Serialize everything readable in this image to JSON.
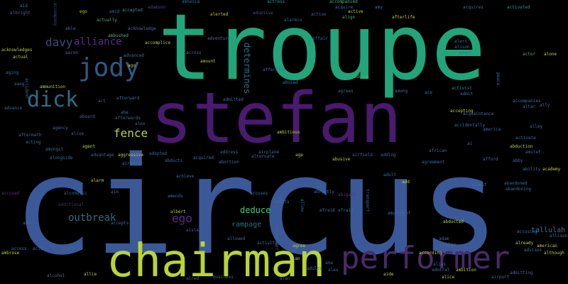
{
  "cloud": {
    "background": "#000000",
    "words": [
      {
        "text": "circus",
        "color": "#3b5998"
      },
      {
        "text": "troupe",
        "color": "#22a57a"
      },
      {
        "text": "stefan",
        "color": "#4a1a6e"
      },
      {
        "text": "chairman",
        "color": "#b8d435"
      },
      {
        "text": "performer",
        "color": "#4a2a6a"
      },
      {
        "text": "jody",
        "color": "#2e5a82"
      },
      {
        "text": "dick",
        "color": "#2a6e84"
      },
      {
        "text": "fence",
        "color": "#b8d435"
      },
      {
        "text": "davy",
        "color": "#3a4a7a"
      },
      {
        "text": "alliance",
        "color": "#5b2a8a"
      },
      {
        "text": "ego",
        "color": "#5b2a8a"
      },
      {
        "text": "outbreak",
        "color": "#2a6e84"
      },
      {
        "text": "deduce",
        "color": "#4fc27a"
      },
      {
        "text": "rampage",
        "color": "#2a6e84"
      },
      {
        "text": "tallulah",
        "color": "#3a6ea0"
      },
      {
        "text": "determines",
        "color": "#2a6e84"
      },
      {
        "text": "aid",
        "color": "#3a6e9a"
      },
      {
        "text": "albright",
        "color": "#5a5a9a"
      },
      {
        "text": "accompany",
        "color": "#3a4a7a"
      },
      {
        "text": "ego",
        "color": "#c0c020"
      },
      {
        "text": "amid",
        "color": "#3a6e9a"
      },
      {
        "text": "accepted",
        "color": "#4a8aa0"
      },
      {
        "text": "adamson",
        "color": "#5a3a9a"
      },
      {
        "text": "amnesia",
        "color": "#3a6e9a"
      },
      {
        "text": "actress",
        "color": "#3a8a8a"
      },
      {
        "text": "accompanied",
        "color": "#4fb07a"
      },
      {
        "text": "amy",
        "color": "#3a6e9a"
      },
      {
        "text": "acquires",
        "color": "#3a6e9a"
      },
      {
        "text": "activated",
        "color": "#3a8aa0"
      },
      {
        "text": "actually",
        "color": "#4fb07a"
      },
      {
        "text": "acknowledge",
        "color": "#4a6aa0"
      },
      {
        "text": "alerted",
        "color": "#c8c840"
      },
      {
        "text": "adoptive",
        "color": "#4a4a8a"
      },
      {
        "text": "acquire",
        "color": "#4a6aa0"
      },
      {
        "text": "active",
        "color": "#c8c840"
      },
      {
        "text": "afterlife",
        "color": "#c8c840"
      },
      {
        "text": "able",
        "color": "#3a6e9a"
      },
      {
        "text": "align",
        "color": "#4fb07a"
      },
      {
        "text": "alarmin",
        "color": "#3a6e9a"
      },
      {
        "text": "action",
        "color": "#3a6e9a"
      },
      {
        "text": "ambushed",
        "color": "#5aaa8a"
      },
      {
        "text": "alert",
        "color": "#3a6e9a"
      },
      {
        "text": "alison",
        "color": "#3a6e9a"
      },
      {
        "text": "adopt",
        "color": "#3a6e9a"
      },
      {
        "text": "acknowledges",
        "color": "#b8d435"
      },
      {
        "text": "actual",
        "color": "#b8d435"
      },
      {
        "text": "aaron",
        "color": "#3a6e9a"
      },
      {
        "text": "advanced",
        "color": "#3a6e9a"
      },
      {
        "text": "accomplice",
        "color": "#b8d435"
      },
      {
        "text": "adventure",
        "color": "#4a6aa0"
      },
      {
        "text": "affair",
        "color": "#3a6e9a"
      },
      {
        "text": "ambassador",
        "color": "#4a8a7a"
      },
      {
        "text": "actor",
        "color": "#5aaa7a"
      },
      {
        "text": "alone",
        "color": "#c8c840"
      },
      {
        "text": "aging",
        "color": "#3a6e9a"
      },
      {
        "text": "accident",
        "color": "#3a6e9a"
      },
      {
        "text": "ammunition",
        "color": "#b8d435"
      },
      {
        "text": "aang",
        "color": "#3a6e9a"
      },
      {
        "text": "across",
        "color": "#3a6e9a"
      },
      {
        "text": "amount",
        "color": "#c8c840"
      },
      {
        "text": "affection",
        "color": "#4a6aa0"
      },
      {
        "text": "advice",
        "color": "#4fb07a"
      },
      {
        "text": "peace",
        "color": "#3a6e9a"
      },
      {
        "text": "act",
        "color": "#3a6e9a"
      },
      {
        "text": "afterward",
        "color": "#3a6e9a"
      },
      {
        "text": "admitted",
        "color": "#4a6aa0"
      },
      {
        "text": "abused",
        "color": "#4a6aa0"
      },
      {
        "text": "agrees",
        "color": "#3a6e9a"
      },
      {
        "text": "among",
        "color": "#3a6e9a"
      },
      {
        "text": "ace",
        "color": "#3a6e9a"
      },
      {
        "text": "activist",
        "color": "#3a8a8a"
      },
      {
        "text": "admit",
        "color": "#3a6e9a"
      },
      {
        "text": "accompanies",
        "color": "#4a6aa0"
      },
      {
        "text": "altar",
        "color": "#3a6e9a"
      },
      {
        "text": "ally",
        "color": "#3a6e9a"
      },
      {
        "text": "advance",
        "color": "#3a6e9a"
      },
      {
        "text": "aboard",
        "color": "#3a6e9a"
      },
      {
        "text": "abe",
        "color": "#3a6e9a"
      },
      {
        "text": "afterwards",
        "color": "#3a6e9a"
      },
      {
        "text": "accepting",
        "color": "#b8d435"
      },
      {
        "text": "acquaintance",
        "color": "#4a6aa0"
      },
      {
        "text": "aftermath",
        "color": "#3a6e9a"
      },
      {
        "text": "agency",
        "color": "#3a6e9a"
      },
      {
        "text": "alex",
        "color": "#3a6e9a"
      },
      {
        "text": "ambitious",
        "color": "#b8d435"
      },
      {
        "text": "afraid",
        "color": "#3a6e9a"
      },
      {
        "text": "accidentally",
        "color": "#4a6aa0"
      },
      {
        "text": "alley",
        "color": "#3a6e9a"
      },
      {
        "text": "alive",
        "color": "#3a6e9a"
      },
      {
        "text": "acting",
        "color": "#3a6e9a"
      },
      {
        "text": "america",
        "color": "#3a6e9a"
      },
      {
        "text": "activate",
        "color": "#3a6e9a"
      },
      {
        "text": "agent",
        "color": "#b8d435"
      },
      {
        "text": "amongst",
        "color": "#3a6e9a"
      },
      {
        "text": "advantage",
        "color": "#3a6e9a"
      },
      {
        "text": "aggressive",
        "color": "#b8d435"
      },
      {
        "text": "adopted",
        "color": "#3a6e9a"
      },
      {
        "text": "acquired",
        "color": "#3a6e9a"
      },
      {
        "text": "address",
        "color": "#3a6e9a"
      },
      {
        "text": "airplane",
        "color": "#3a6e9a"
      },
      {
        "text": "alternate",
        "color": "#3a6e9a"
      },
      {
        "text": "age",
        "color": "#b8d435"
      },
      {
        "text": "airfield",
        "color": "#3a6e9a"
      },
      {
        "text": "adding",
        "color": "#3a6e9a"
      },
      {
        "text": "african",
        "color": "#3a6e9a"
      },
      {
        "text": "ai",
        "color": "#3a6e9a"
      },
      {
        "text": "afford",
        "color": "#3a6e9a"
      },
      {
        "text": "abduction",
        "color": "#b8d435"
      },
      {
        "text": "amulet",
        "color": "#3a6e9a"
      },
      {
        "text": "alongside",
        "color": "#3a6e9a"
      },
      {
        "text": "aircraft",
        "color": "#3a6e9a"
      },
      {
        "text": "abducts",
        "color": "#3a6e9a"
      },
      {
        "text": "abortion",
        "color": "#3a6e9a"
      },
      {
        "text": "abusive",
        "color": "#b8d435"
      },
      {
        "text": "agreement",
        "color": "#3a6e9a"
      },
      {
        "text": "abby",
        "color": "#3a6e9a"
      },
      {
        "text": "ability",
        "color": "#3a6e9a"
      },
      {
        "text": "academy",
        "color": "#c8c840"
      },
      {
        "text": "alarm",
        "color": "#b8d435"
      },
      {
        "text": "achieve",
        "color": "#3a6e9a"
      },
      {
        "text": "adult",
        "color": "#3a6e9a"
      },
      {
        "text": "add",
        "color": "#b8d435"
      },
      {
        "text": "ali",
        "color": "#3a6e9a"
      },
      {
        "text": "abruptly",
        "color": "#3a6e9a"
      },
      {
        "text": "almost",
        "color": "#3a6e9a"
      },
      {
        "text": "abandoned",
        "color": "#3a6e9a"
      },
      {
        "text": "abandoning",
        "color": "#3a6e9a"
      },
      {
        "text": "accused",
        "color": "#6a2a7a"
      },
      {
        "text": "alcoholic",
        "color": "#3a6e9a"
      },
      {
        "text": "aim",
        "color": "#3a6e9a"
      },
      {
        "text": "amends",
        "color": "#3a6e9a"
      },
      {
        "text": "accuses",
        "color": "#3a6e9a"
      },
      {
        "text": "allow",
        "color": "#3a6e9a"
      },
      {
        "text": "abigail",
        "color": "#6a2a7a"
      },
      {
        "text": "additional",
        "color": "#4a2a6a"
      },
      {
        "text": "afraid",
        "color": "#3a6e9a"
      },
      {
        "text": "transport",
        "color": "#3a6e9a"
      },
      {
        "text": "amusement",
        "color": "#3a6e9a"
      },
      {
        "text": "albert",
        "color": "#b8d435"
      },
      {
        "text": "adults",
        "color": "#3a6e9a"
      },
      {
        "text": "abducted",
        "color": "#b8d435"
      },
      {
        "text": "abs",
        "color": "#3a6e9a"
      },
      {
        "text": "accepts",
        "color": "#3a6e9a"
      },
      {
        "text": "aisle",
        "color": "#3a6e9a"
      },
      {
        "text": "allowed",
        "color": "#3a6e9a"
      },
      {
        "text": "activity",
        "color": "#3a6e9a"
      },
      {
        "text": "alexander",
        "color": "#3a6e9a"
      },
      {
        "text": "agree",
        "color": "#b8d435"
      },
      {
        "text": "adam",
        "color": "#3a6e9a"
      },
      {
        "text": "abbey",
        "color": "#3a6e9a"
      },
      {
        "text": "accusing",
        "color": "#3a6e9a"
      },
      {
        "text": "allison",
        "color": "#3a6e9a"
      },
      {
        "text": "already",
        "color": "#b8d435"
      },
      {
        "text": "american",
        "color": "#c8c840"
      },
      {
        "text": "advises",
        "color": "#3a6e9a"
      },
      {
        "text": "although",
        "color": "#b8d435"
      },
      {
        "text": "ambrose",
        "color": "#b8d435"
      },
      {
        "text": "access",
        "color": "#3a6e9a"
      },
      {
        "text": "acid",
        "color": "#3a6e9a"
      },
      {
        "text": "alfred",
        "color": "#3a6e9a"
      },
      {
        "text": "alan",
        "color": "#b8d435"
      },
      {
        "text": "ana",
        "color": "#3a6e9a"
      },
      {
        "text": "adults",
        "color": "#3a6e9a"
      },
      {
        "text": "alex",
        "color": "#3a6e9a"
      },
      {
        "text": "alias",
        "color": "#3a6e9a"
      },
      {
        "text": "according",
        "color": "#c8c840"
      },
      {
        "text": "admiral",
        "color": "#3a6e9a"
      },
      {
        "text": "ambition",
        "color": "#b8d435"
      },
      {
        "text": "admitting",
        "color": "#3a6e9a"
      },
      {
        "text": "alcohol",
        "color": "#3a6e9a"
      },
      {
        "text": "allie",
        "color": "#b8d435"
      },
      {
        "text": "business",
        "color": "#3a6e9a"
      },
      {
        "text": "aide",
        "color": "#b8d435"
      },
      {
        "text": "alice",
        "color": "#b8d435"
      },
      {
        "text": "airport",
        "color": "#3a6e9a"
      },
      {
        "text": "aired",
        "color": "#3a6e9a"
      },
      {
        "text": "alan",
        "color": "#3a6e9a"
      },
      {
        "text": "ago",
        "color": "#b8d435"
      }
    ]
  }
}
